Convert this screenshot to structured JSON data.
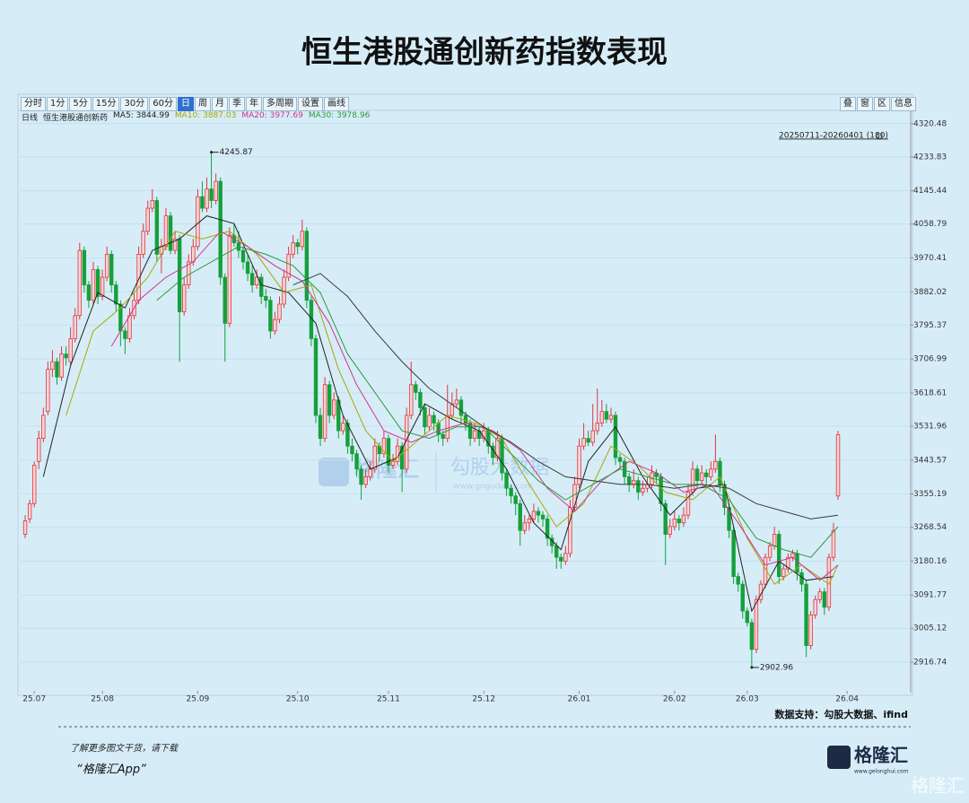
{
  "chart_data": {
    "type": "candlestick",
    "title": "恒生港股通创新药指数表现",
    "period": "日线",
    "instrument": "恒生港股通创新药",
    "range_label": "20250711-20260401 (180)",
    "up_color": "#e3343c",
    "down_color": "#15a03a",
    "grid": true,
    "xlim": [
      -1,
      195
    ],
    "ylim": [
      2842,
      4334
    ],
    "yticks": [
      4320.48,
      4233.83,
      4145.44,
      4058.79,
      3970.41,
      3882.02,
      3795.37,
      3706.99,
      3618.61,
      3531.96,
      3443.57,
      3355.19,
      3268.54,
      3180.16,
      3091.77,
      3005.12,
      2916.74
    ],
    "xticks": [
      {
        "value": 2,
        "label": "25.07"
      },
      {
        "value": 17,
        "label": "25.08"
      },
      {
        "value": 38,
        "label": "25.09"
      },
      {
        "value": 60,
        "label": "25.10"
      },
      {
        "value": 80,
        "label": "25.11"
      },
      {
        "value": 101,
        "label": "25.12"
      },
      {
        "value": 122,
        "label": "26.01"
      },
      {
        "value": 143,
        "label": "26.02"
      },
      {
        "value": 159,
        "label": "26.03"
      },
      {
        "value": 181,
        "label": "26.04"
      }
    ],
    "annotations": [
      {
        "index": 41,
        "field": 1
      },
      {
        "index": 160,
        "field": 2
      }
    ],
    "ohlc": [
      [
        3250,
        3300,
        3240,
        3285
      ],
      [
        3290,
        3340,
        3280,
        3330
      ],
      [
        3330,
        3440,
        3320,
        3430
      ],
      [
        3440,
        3520,
        3420,
        3500
      ],
      [
        3500,
        3580,
        3490,
        3560
      ],
      [
        3570,
        3700,
        3560,
        3680
      ],
      [
        3680,
        3730,
        3660,
        3700
      ],
      [
        3700,
        3710,
        3640,
        3660
      ],
      [
        3660,
        3740,
        3650,
        3720
      ],
      [
        3720,
        3740,
        3690,
        3710
      ],
      [
        3700,
        3790,
        3690,
        3760
      ],
      [
        3760,
        3840,
        3750,
        3820
      ],
      [
        3820,
        4010,
        3810,
        3990
      ],
      [
        3990,
        4000,
        3880,
        3900
      ],
      [
        3900,
        3910,
        3840,
        3860
      ],
      [
        3860,
        3960,
        3850,
        3940
      ],
      [
        3940,
        3950,
        3850,
        3870
      ],
      [
        3870,
        3940,
        3860,
        3920
      ],
      [
        3920,
        4000,
        3910,
        3980
      ],
      [
        3980,
        3990,
        3880,
        3900
      ],
      [
        3900,
        3910,
        3830,
        3850
      ],
      [
        3850,
        3860,
        3740,
        3780
      ],
      [
        3780,
        3790,
        3720,
        3760
      ],
      [
        3760,
        3840,
        3750,
        3820
      ],
      [
        3820,
        3880,
        3810,
        3860
      ],
      [
        3860,
        4000,
        3850,
        3980
      ],
      [
        3980,
        4060,
        3970,
        4040
      ],
      [
        4040,
        4120,
        4030,
        4100
      ],
      [
        4100,
        4150,
        4090,
        4120
      ],
      [
        4120,
        4130,
        3960,
        3980
      ],
      [
        3980,
        4020,
        3930,
        4000
      ],
      [
        4000,
        4100,
        3990,
        4080
      ],
      [
        4080,
        4090,
        3980,
        3990
      ],
      [
        3990,
        4040,
        3980,
        4020
      ],
      [
        4020,
        4030,
        3700,
        3830
      ],
      [
        3830,
        3920,
        3820,
        3900
      ],
      [
        3900,
        3980,
        3890,
        3960
      ],
      [
        3960,
        4020,
        3950,
        4000
      ],
      [
        4000,
        4150,
        3990,
        4130
      ],
      [
        4130,
        4170,
        4090,
        4100
      ],
      [
        4100,
        4180,
        4090,
        4150
      ],
      [
        4150,
        4245.87,
        4100,
        4120
      ],
      [
        4120,
        4190,
        4110,
        4170
      ],
      [
        4170,
        4180,
        3900,
        3920
      ],
      [
        3920,
        3930,
        3700,
        3800
      ],
      [
        3800,
        4050,
        3790,
        4030
      ],
      [
        4030,
        4060,
        4000,
        4010
      ],
      [
        4010,
        4040,
        3970,
        3990
      ],
      [
        3990,
        4000,
        3940,
        3960
      ],
      [
        3960,
        3980,
        3910,
        3930
      ],
      [
        3930,
        3950,
        3880,
        3900
      ],
      [
        3900,
        3940,
        3890,
        3920
      ],
      [
        3920,
        3930,
        3850,
        3870
      ],
      [
        3870,
        3890,
        3840,
        3860
      ],
      [
        3860,
        3870,
        3760,
        3780
      ],
      [
        3780,
        3830,
        3770,
        3810
      ],
      [
        3810,
        3870,
        3800,
        3850
      ],
      [
        3850,
        3940,
        3840,
        3920
      ],
      [
        3920,
        4000,
        3910,
        3980
      ],
      [
        3980,
        4030,
        3970,
        4010
      ],
      [
        4010,
        4020,
        3980,
        4000
      ],
      [
        4000,
        4070,
        3990,
        4040
      ],
      [
        4040,
        4050,
        3840,
        3860
      ],
      [
        3860,
        3870,
        3740,
        3760
      ],
      [
        3760,
        3770,
        3540,
        3560
      ],
      [
        3560,
        3580,
        3480,
        3500
      ],
      [
        3500,
        3660,
        3490,
        3640
      ],
      [
        3640,
        3650,
        3540,
        3560
      ],
      [
        3560,
        3620,
        3550,
        3600
      ],
      [
        3600,
        3610,
        3500,
        3520
      ],
      [
        3520,
        3560,
        3510,
        3540
      ],
      [
        3540,
        3550,
        3460,
        3480
      ],
      [
        3480,
        3500,
        3440,
        3460
      ],
      [
        3460,
        3470,
        3400,
        3420
      ],
      [
        3420,
        3430,
        3340,
        3380
      ],
      [
        3380,
        3420,
        3370,
        3400
      ],
      [
        3400,
        3440,
        3390,
        3420
      ],
      [
        3420,
        3500,
        3410,
        3480
      ],
      [
        3480,
        3490,
        3440,
        3460
      ],
      [
        3460,
        3520,
        3450,
        3500
      ],
      [
        3500,
        3510,
        3410,
        3430
      ],
      [
        3430,
        3460,
        3420,
        3440
      ],
      [
        3440,
        3500,
        3430,
        3480
      ],
      [
        3480,
        3490,
        3360,
        3420
      ],
      [
        3420,
        3580,
        3410,
        3560
      ],
      [
        3560,
        3700,
        3550,
        3640
      ],
      [
        3640,
        3650,
        3600,
        3620
      ],
      [
        3620,
        3630,
        3560,
        3580
      ],
      [
        3580,
        3590,
        3510,
        3530
      ],
      [
        3530,
        3580,
        3520,
        3560
      ],
      [
        3560,
        3570,
        3520,
        3540
      ],
      [
        3540,
        3550,
        3490,
        3510
      ],
      [
        3510,
        3520,
        3480,
        3500
      ],
      [
        3500,
        3640,
        3490,
        3560
      ],
      [
        3560,
        3620,
        3550,
        3590
      ],
      [
        3590,
        3630,
        3580,
        3600
      ],
      [
        3600,
        3610,
        3540,
        3560
      ],
      [
        3560,
        3570,
        3520,
        3540
      ],
      [
        3540,
        3550,
        3480,
        3500
      ],
      [
        3500,
        3540,
        3490,
        3520
      ],
      [
        3520,
        3530,
        3480,
        3500
      ],
      [
        3500,
        3540,
        3490,
        3520
      ],
      [
        3520,
        3530,
        3460,
        3480
      ],
      [
        3480,
        3490,
        3430,
        3450
      ],
      [
        3450,
        3520,
        3440,
        3500
      ],
      [
        3500,
        3510,
        3390,
        3410
      ],
      [
        3410,
        3420,
        3350,
        3370
      ],
      [
        3370,
        3380,
        3330,
        3350
      ],
      [
        3350,
        3360,
        3300,
        3330
      ],
      [
        3330,
        3340,
        3220,
        3260
      ],
      [
        3260,
        3300,
        3250,
        3280
      ],
      [
        3280,
        3300,
        3260,
        3290
      ],
      [
        3290,
        3330,
        3280,
        3310
      ],
      [
        3310,
        3320,
        3280,
        3300
      ],
      [
        3300,
        3310,
        3270,
        3290
      ],
      [
        3290,
        3300,
        3220,
        3240
      ],
      [
        3240,
        3250,
        3200,
        3220
      ],
      [
        3220,
        3230,
        3160,
        3190
      ],
      [
        3190,
        3200,
        3160,
        3180
      ],
      [
        3180,
        3220,
        3170,
        3200
      ],
      [
        3200,
        3340,
        3190,
        3320
      ],
      [
        3320,
        3400,
        3310,
        3380
      ],
      [
        3380,
        3500,
        3370,
        3480
      ],
      [
        3480,
        3540,
        3470,
        3500
      ],
      [
        3500,
        3520,
        3480,
        3490
      ],
      [
        3490,
        3590,
        3480,
        3520
      ],
      [
        3520,
        3630,
        3510,
        3540
      ],
      [
        3540,
        3600,
        3530,
        3570
      ],
      [
        3570,
        3590,
        3540,
        3550
      ],
      [
        3550,
        3580,
        3540,
        3560
      ],
      [
        3560,
        3570,
        3430,
        3450
      ],
      [
        3450,
        3460,
        3420,
        3440
      ],
      [
        3440,
        3450,
        3380,
        3400
      ],
      [
        3400,
        3410,
        3360,
        3380
      ],
      [
        3380,
        3420,
        3370,
        3390
      ],
      [
        3390,
        3400,
        3340,
        3360
      ],
      [
        3360,
        3390,
        3350,
        3370
      ],
      [
        3370,
        3400,
        3360,
        3380
      ],
      [
        3380,
        3430,
        3370,
        3410
      ],
      [
        3410,
        3420,
        3380,
        3400
      ],
      [
        3400,
        3410,
        3310,
        3330
      ],
      [
        3330,
        3340,
        3170,
        3250
      ],
      [
        3250,
        3290,
        3240,
        3270
      ],
      [
        3270,
        3310,
        3260,
        3290
      ],
      [
        3290,
        3300,
        3260,
        3280
      ],
      [
        3280,
        3320,
        3270,
        3300
      ],
      [
        3300,
        3380,
        3290,
        3360
      ],
      [
        3360,
        3440,
        3350,
        3420
      ],
      [
        3420,
        3430,
        3370,
        3390
      ],
      [
        3390,
        3430,
        3380,
        3410
      ],
      [
        3410,
        3420,
        3380,
        3400
      ],
      [
        3400,
        3440,
        3390,
        3420
      ],
      [
        3420,
        3510,
        3410,
        3440
      ],
      [
        3440,
        3450,
        3360,
        3380
      ],
      [
        3380,
        3390,
        3300,
        3320
      ],
      [
        3320,
        3330,
        3240,
        3260
      ],
      [
        3260,
        3270,
        3120,
        3140
      ],
      [
        3140,
        3150,
        3100,
        3120
      ],
      [
        3120,
        3130,
        3030,
        3050
      ],
      [
        3050,
        3060,
        3010,
        3020
      ],
      [
        3020,
        3030,
        2902.96,
        2950
      ],
      [
        2950,
        3090,
        2940,
        3080
      ],
      [
        3080,
        3130,
        3070,
        3120
      ],
      [
        3120,
        3200,
        3110,
        3190
      ],
      [
        3190,
        3230,
        3180,
        3220
      ],
      [
        3220,
        3270,
        3210,
        3250
      ],
      [
        3250,
        3260,
        3120,
        3140
      ],
      [
        3140,
        3170,
        3130,
        3160
      ],
      [
        3160,
        3200,
        3150,
        3190
      ],
      [
        3190,
        3210,
        3180,
        3200
      ],
      [
        3200,
        3210,
        3130,
        3150
      ],
      [
        3150,
        3160,
        3100,
        3120
      ],
      [
        3120,
        3130,
        2930,
        2960
      ],
      [
        2960,
        3050,
        2950,
        3040
      ],
      [
        3040,
        3090,
        3030,
        3080
      ],
      [
        3080,
        3110,
        3070,
        3100
      ],
      [
        3100,
        3110,
        3040,
        3060
      ],
      [
        3060,
        3200,
        3050,
        3190
      ],
      [
        3190,
        3280,
        3180,
        3260
      ],
      [
        3350,
        3520,
        3340,
        3510
      ]
    ],
    "series": [
      {
        "name": "MA5:",
        "current": 3844.99,
        "color": "#222222",
        "x": [
          4,
          10,
          16,
          22,
          28,
          34,
          40,
          46,
          52,
          58,
          64,
          70,
          76,
          82,
          88,
          94,
          100,
          106,
          112,
          118,
          124,
          130,
          136,
          142,
          148,
          154,
          160,
          166,
          172,
          178
        ],
        "values": [
          3400,
          3690,
          3880,
          3840,
          3990,
          4020,
          4080,
          4060,
          3900,
          3880,
          3800,
          3560,
          3420,
          3450,
          3590,
          3550,
          3520,
          3420,
          3280,
          3210,
          3440,
          3530,
          3400,
          3300,
          3370,
          3380,
          3050,
          3180,
          3130,
          3140
        ]
      },
      {
        "name": "MA10:",
        "current": 3887.03,
        "color": "#a8a800",
        "x": [
          9,
          15,
          21,
          27,
          33,
          39,
          45,
          51,
          57,
          63,
          69,
          75,
          81,
          87,
          93,
          99,
          105,
          111,
          117,
          123,
          129,
          135,
          141,
          147,
          153,
          159,
          165,
          171,
          177,
          179
        ],
        "values": [
          3560,
          3780,
          3840,
          3920,
          4040,
          4020,
          4040,
          3980,
          3880,
          3900,
          3680,
          3520,
          3440,
          3500,
          3560,
          3540,
          3500,
          3380,
          3270,
          3330,
          3480,
          3430,
          3360,
          3340,
          3400,
          3240,
          3120,
          3170,
          3120,
          3170
        ]
      },
      {
        "name": "MA20:",
        "current": 3977.69,
        "color": "#d0348c",
        "x": [
          19,
          25,
          31,
          37,
          43,
          49,
          55,
          61,
          67,
          73,
          79,
          85,
          91,
          97,
          103,
          109,
          115,
          121,
          127,
          133,
          139,
          145,
          151,
          157,
          163,
          169,
          175,
          179
        ],
        "values": [
          3740,
          3860,
          3920,
          3960,
          4040,
          4000,
          3950,
          3910,
          3800,
          3640,
          3520,
          3490,
          3520,
          3540,
          3520,
          3470,
          3370,
          3310,
          3390,
          3440,
          3410,
          3360,
          3380,
          3280,
          3170,
          3190,
          3130,
          3170
        ]
      },
      {
        "name": "MA30:",
        "current": 3978.96,
        "color": "#2e9a3c",
        "x": [
          29,
          35,
          41,
          47,
          53,
          59,
          65,
          71,
          77,
          83,
          89,
          95,
          101,
          107,
          113,
          119,
          125,
          131,
          137,
          143,
          149,
          155,
          161,
          167,
          173,
          179
        ],
        "values": [
          3860,
          3920,
          3960,
          4000,
          3980,
          3950,
          3880,
          3720,
          3620,
          3520,
          3500,
          3530,
          3530,
          3460,
          3390,
          3340,
          3380,
          3420,
          3400,
          3380,
          3380,
          3340,
          3240,
          3210,
          3190,
          3270
        ]
      },
      {
        "color": "#3a3a3a",
        "x": [
          59,
          65,
          71,
          77,
          83,
          89,
          95,
          101,
          107,
          113,
          119,
          125,
          131,
          137,
          143,
          149,
          155,
          161,
          167,
          173,
          179
        ],
        "values": [
          3900,
          3930,
          3870,
          3780,
          3700,
          3630,
          3580,
          3530,
          3490,
          3440,
          3400,
          3390,
          3380,
          3380,
          3370,
          3380,
          3370,
          3330,
          3310,
          3290,
          3300
        ]
      }
    ]
  },
  "toolbar": {
    "left": [
      "分时",
      "1分",
      "5分",
      "15分",
      "30分",
      "60分",
      "日",
      "周",
      "月",
      "季",
      "年",
      "多周期",
      "设置",
      "画线"
    ],
    "selected": 6,
    "right": [
      "叠",
      "窗",
      "区",
      "信息"
    ]
  },
  "watermark": {
    "brand": "格隆汇",
    "partner": "勾股大数据",
    "url": "www.gogudata.com"
  },
  "footer": {
    "source": "数据支持：勾股大数据、ifind",
    "promo": "了解更多图文干货，请下载",
    "app": "“格隆汇App”",
    "logo": "格隆汇",
    "logo_url": "www.gelonghui.com",
    "corner": "格隆汇"
  }
}
